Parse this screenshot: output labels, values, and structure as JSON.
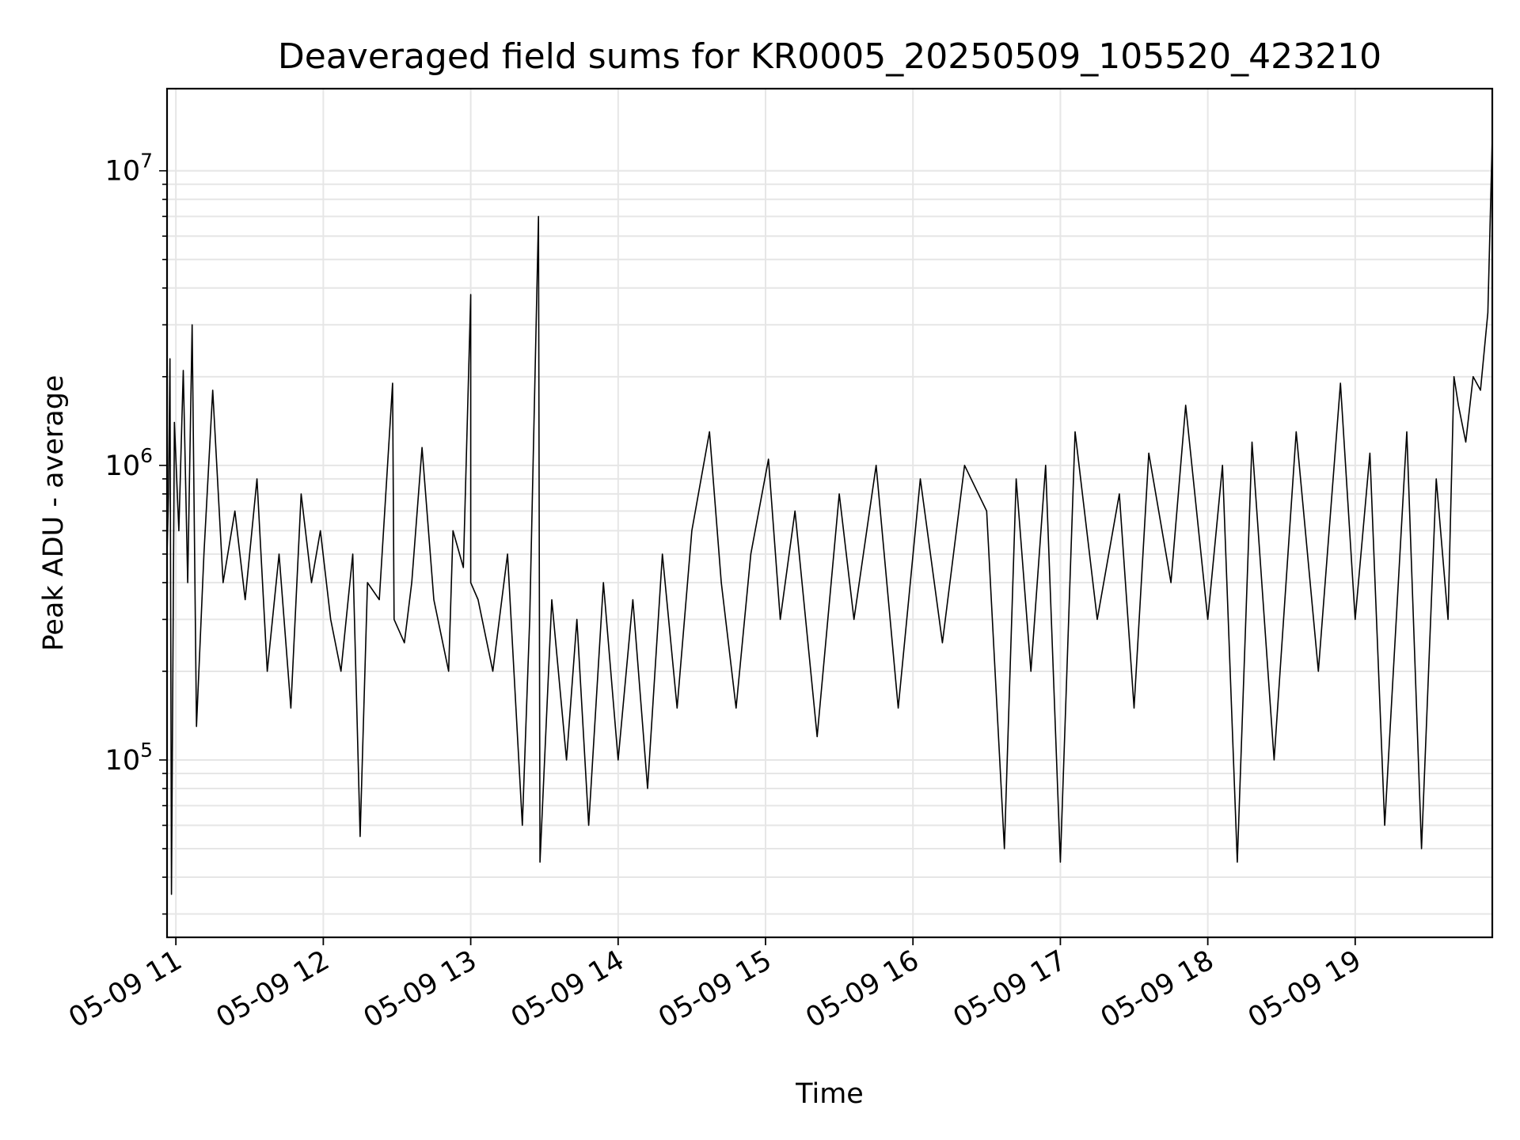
{
  "chart_data": {
    "type": "line",
    "title": "Deaveraged field sums for KR0005_20250509_105520_423210",
    "xlabel": "Time",
    "ylabel": "Peak ADU - average",
    "yscale": "log",
    "grid": true,
    "line_color": "#000000",
    "x_tick_labels": [
      "05-09 11",
      "05-09 12",
      "05-09 13",
      "05-09 14",
      "05-09 15",
      "05-09 16",
      "05-09 17",
      "05-09 18",
      "05-09 19"
    ],
    "x_ticks_hours": [
      11,
      12,
      13,
      14,
      15,
      16,
      17,
      18,
      19
    ],
    "xlim_hours": [
      10.94,
      19.93
    ],
    "y_ticks": [
      {
        "base": "10",
        "exp": "5",
        "value": 100000
      },
      {
        "base": "10",
        "exp": "6",
        "value": 1000000
      },
      {
        "base": "10",
        "exp": "7",
        "value": 10000000
      }
    ],
    "ylim": [
      25000,
      19000000
    ],
    "series": [
      {
        "x_hours": [
          10.94,
          10.95,
          10.96,
          10.97,
          10.99,
          11.02,
          11.05,
          11.08,
          11.11,
          11.14,
          11.19,
          11.25,
          11.32,
          11.4,
          11.47,
          11.55,
          11.62,
          11.7,
          11.78,
          11.85,
          11.92,
          11.98,
          12.05,
          12.12,
          12.2,
          12.25,
          12.3,
          12.38,
          12.47,
          12.48,
          12.55,
          12.6,
          12.67,
          12.75,
          12.85,
          12.88,
          12.95,
          13.0,
          13.0,
          13.05,
          13.15,
          13.25,
          13.35,
          13.4,
          13.46,
          13.47,
          13.55,
          13.65,
          13.72,
          13.8,
          13.9,
          14.0,
          14.1,
          14.2,
          14.3,
          14.4,
          14.5,
          14.62,
          14.7,
          14.8,
          14.9,
          15.02,
          15.1,
          15.2,
          15.35,
          15.5,
          15.6,
          15.75,
          15.9,
          16.05,
          16.2,
          16.35,
          16.5,
          16.62,
          16.7,
          16.8,
          16.9,
          17.0,
          17.1,
          17.25,
          17.4,
          17.5,
          17.6,
          17.75,
          17.85,
          18.0,
          18.1,
          18.2,
          18.3,
          18.45,
          18.6,
          18.75,
          18.9,
          19.0,
          19.1,
          19.2,
          19.35,
          19.45,
          19.55,
          19.63,
          19.67,
          19.7,
          19.75,
          19.8,
          19.85,
          19.9,
          19.93
        ],
        "y": [
          500000,
          800000,
          2300000,
          35000,
          1400000,
          600000,
          2100000,
          400000,
          3000000,
          130000,
          500000,
          1800000,
          400000,
          700000,
          350000,
          900000,
          200000,
          500000,
          150000,
          800000,
          400000,
          600000,
          300000,
          200000,
          500000,
          55000,
          400000,
          350000,
          1900000,
          300000,
          250000,
          400000,
          1150000,
          350000,
          200000,
          600000,
          450000,
          3800000,
          400000,
          350000,
          200000,
          500000,
          60000,
          300000,
          7000000,
          45000,
          350000,
          100000,
          300000,
          60000,
          400000,
          100000,
          350000,
          80000,
          500000,
          150000,
          600000,
          1300000,
          400000,
          150000,
          500000,
          1050000,
          300000,
          700000,
          120000,
          800000,
          300000,
          1000000,
          150000,
          900000,
          250000,
          1000000,
          700000,
          50000,
          900000,
          200000,
          1000000,
          45000,
          1300000,
          300000,
          800000,
          150000,
          1100000,
          400000,
          1600000,
          300000,
          1000000,
          45000,
          1200000,
          100000,
          1300000,
          200000,
          1900000,
          300000,
          1100000,
          60000,
          1300000,
          50000,
          900000,
          300000,
          2000000,
          1600000,
          1200000,
          2000000,
          1800000,
          3300000,
          13000000
        ]
      }
    ]
  }
}
